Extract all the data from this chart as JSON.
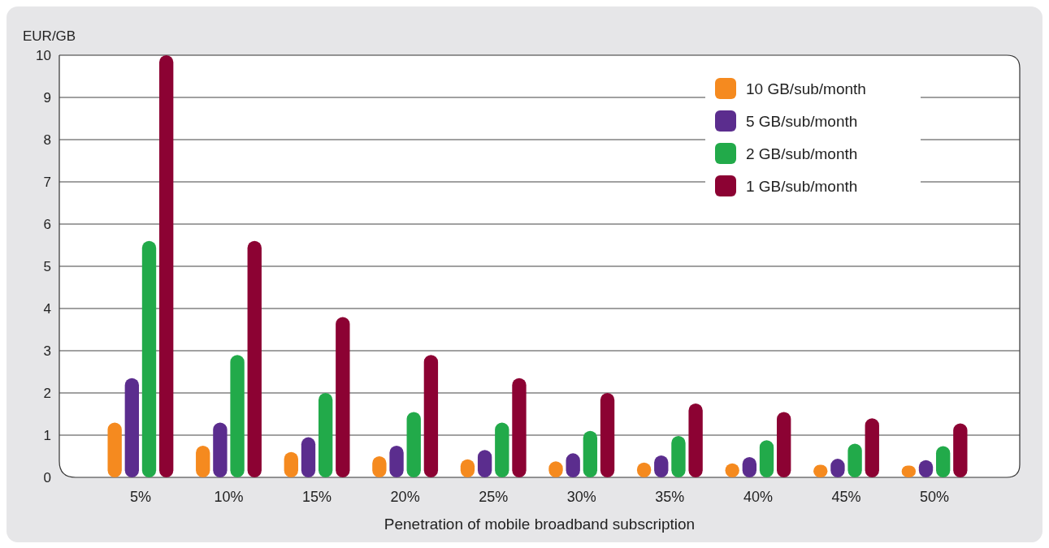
{
  "chart_data": {
    "type": "bar",
    "xlabel": "Penetration of mobile broadband subscription",
    "ylabel": "EUR/GB",
    "categories": [
      "5%",
      "10%",
      "15%",
      "20%",
      "25%",
      "30%",
      "35%",
      "40%",
      "45%",
      "50%"
    ],
    "series": [
      {
        "name": "10 GB/sub/month",
        "color": "#f58a1f",
        "values": [
          1.3,
          0.75,
          0.6,
          0.5,
          0.43,
          0.38,
          0.35,
          0.33,
          0.3,
          0.28
        ]
      },
      {
        "name": "5 GB/sub/month",
        "color": "#5b2d8e",
        "values": [
          2.35,
          1.3,
          0.95,
          0.75,
          0.65,
          0.57,
          0.52,
          0.48,
          0.44,
          0.41
        ]
      },
      {
        "name": "2 GB/sub/month",
        "color": "#22aa4a",
        "values": [
          5.6,
          2.9,
          2.0,
          1.55,
          1.3,
          1.1,
          0.98,
          0.88,
          0.8,
          0.74
        ]
      },
      {
        "name": "1 GB/sub/month",
        "color": "#8c0233",
        "values": [
          10,
          5.6,
          3.8,
          2.9,
          2.35,
          2.0,
          1.75,
          1.55,
          1.4,
          1.28
        ]
      }
    ],
    "ylim": [
      0,
      10
    ],
    "yticks": [
      0,
      1,
      2,
      3,
      4,
      5,
      6,
      7,
      8,
      9,
      10
    ],
    "grid": "y",
    "legend": "top right"
  }
}
